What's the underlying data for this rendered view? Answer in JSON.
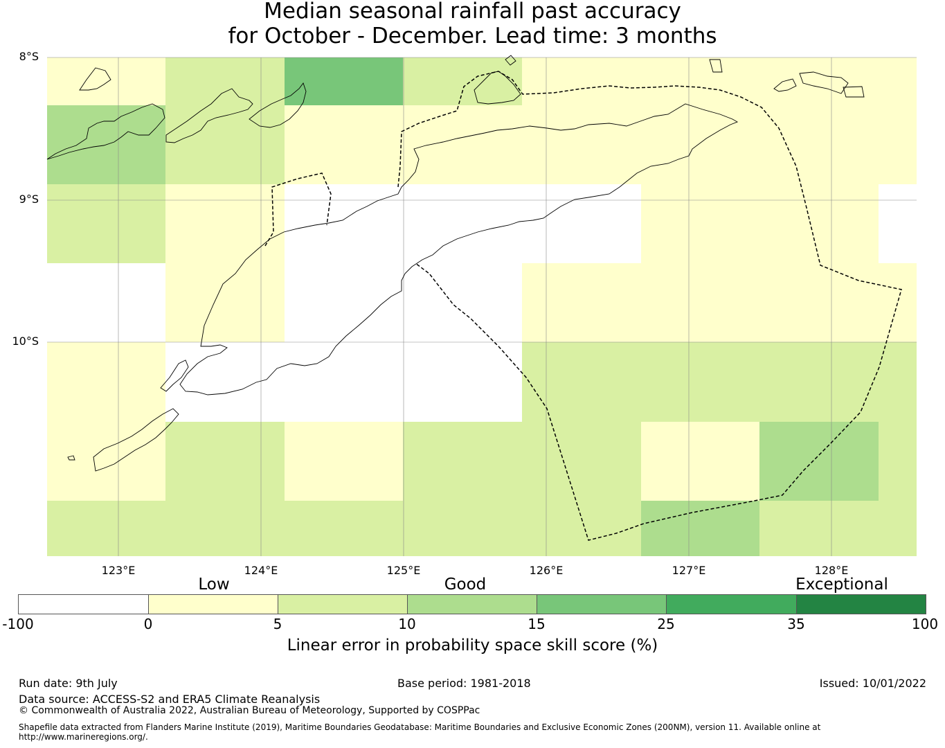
{
  "title": {
    "line1": "Median seasonal rainfall past accuracy",
    "line2": "for October - December. Lead time: 3 months"
  },
  "map": {
    "lon_range": [
      122.5,
      128.6
    ],
    "lat_range": [
      -11.5,
      -8.0
    ],
    "lat_labels": [
      "8°S",
      "9°S",
      "10°S"
    ],
    "lon_labels": [
      "123°E",
      "124°E",
      "125°E",
      "126°E",
      "127°E",
      "128°E"
    ],
    "cell_size_deg": [
      0.83,
      0.56
    ],
    "grid_lines": true,
    "skill_grid_rows_north_to_south": [
      [
        0,
        5,
        15,
        5,
        0,
        0,
        0,
        0
      ],
      [
        10,
        5,
        0,
        0,
        0,
        0,
        0,
        0
      ],
      [
        5,
        0,
        -1,
        -1,
        -1,
        0,
        0,
        -1
      ],
      [
        -1,
        0,
        -1,
        -1,
        0,
        0,
        0,
        0
      ],
      [
        0,
        -1,
        -1,
        -1,
        5,
        5,
        5,
        5
      ],
      [
        0,
        5,
        0,
        5,
        5,
        0,
        10,
        5
      ],
      [
        5,
        5,
        5,
        5,
        5,
        10,
        5,
        5
      ]
    ],
    "coastline_color": "#000000",
    "maritime_boundary_style": "dashed"
  },
  "colorbar": {
    "band_labels": [
      "Low",
      "Good",
      "Exceptional"
    ],
    "ticks": [
      "-100",
      "0",
      "5",
      "10",
      "15",
      "25",
      "35",
      "100"
    ],
    "colors": [
      "#ffffff",
      "#ffffcc",
      "#d9f0a3",
      "#addd8e",
      "#78c679",
      "#41ab5d",
      "#238443"
    ],
    "label": "Linear error in probability space skill score (%)"
  },
  "footer": {
    "run_date": "Run date: 9th July",
    "base_period": "Base period: 1981-2018",
    "issued": "Issued: 10/01/2022",
    "data_source": "Data source: ACCESS-S2 and ERA5 Climate Reanalysis",
    "copyright": "© Commonwealth of Australia 2022, Australian Bureau of Meteorology, Supported by COSPPac",
    "shapefile": "Shapefile data extracted from Flanders Marine Institute (2019), Maritime Boundaries Geodatabase: Maritime Boundaries and Exclusive Economic Zones (200NM), version 11. Available online at http://www.marineregions.org/."
  }
}
